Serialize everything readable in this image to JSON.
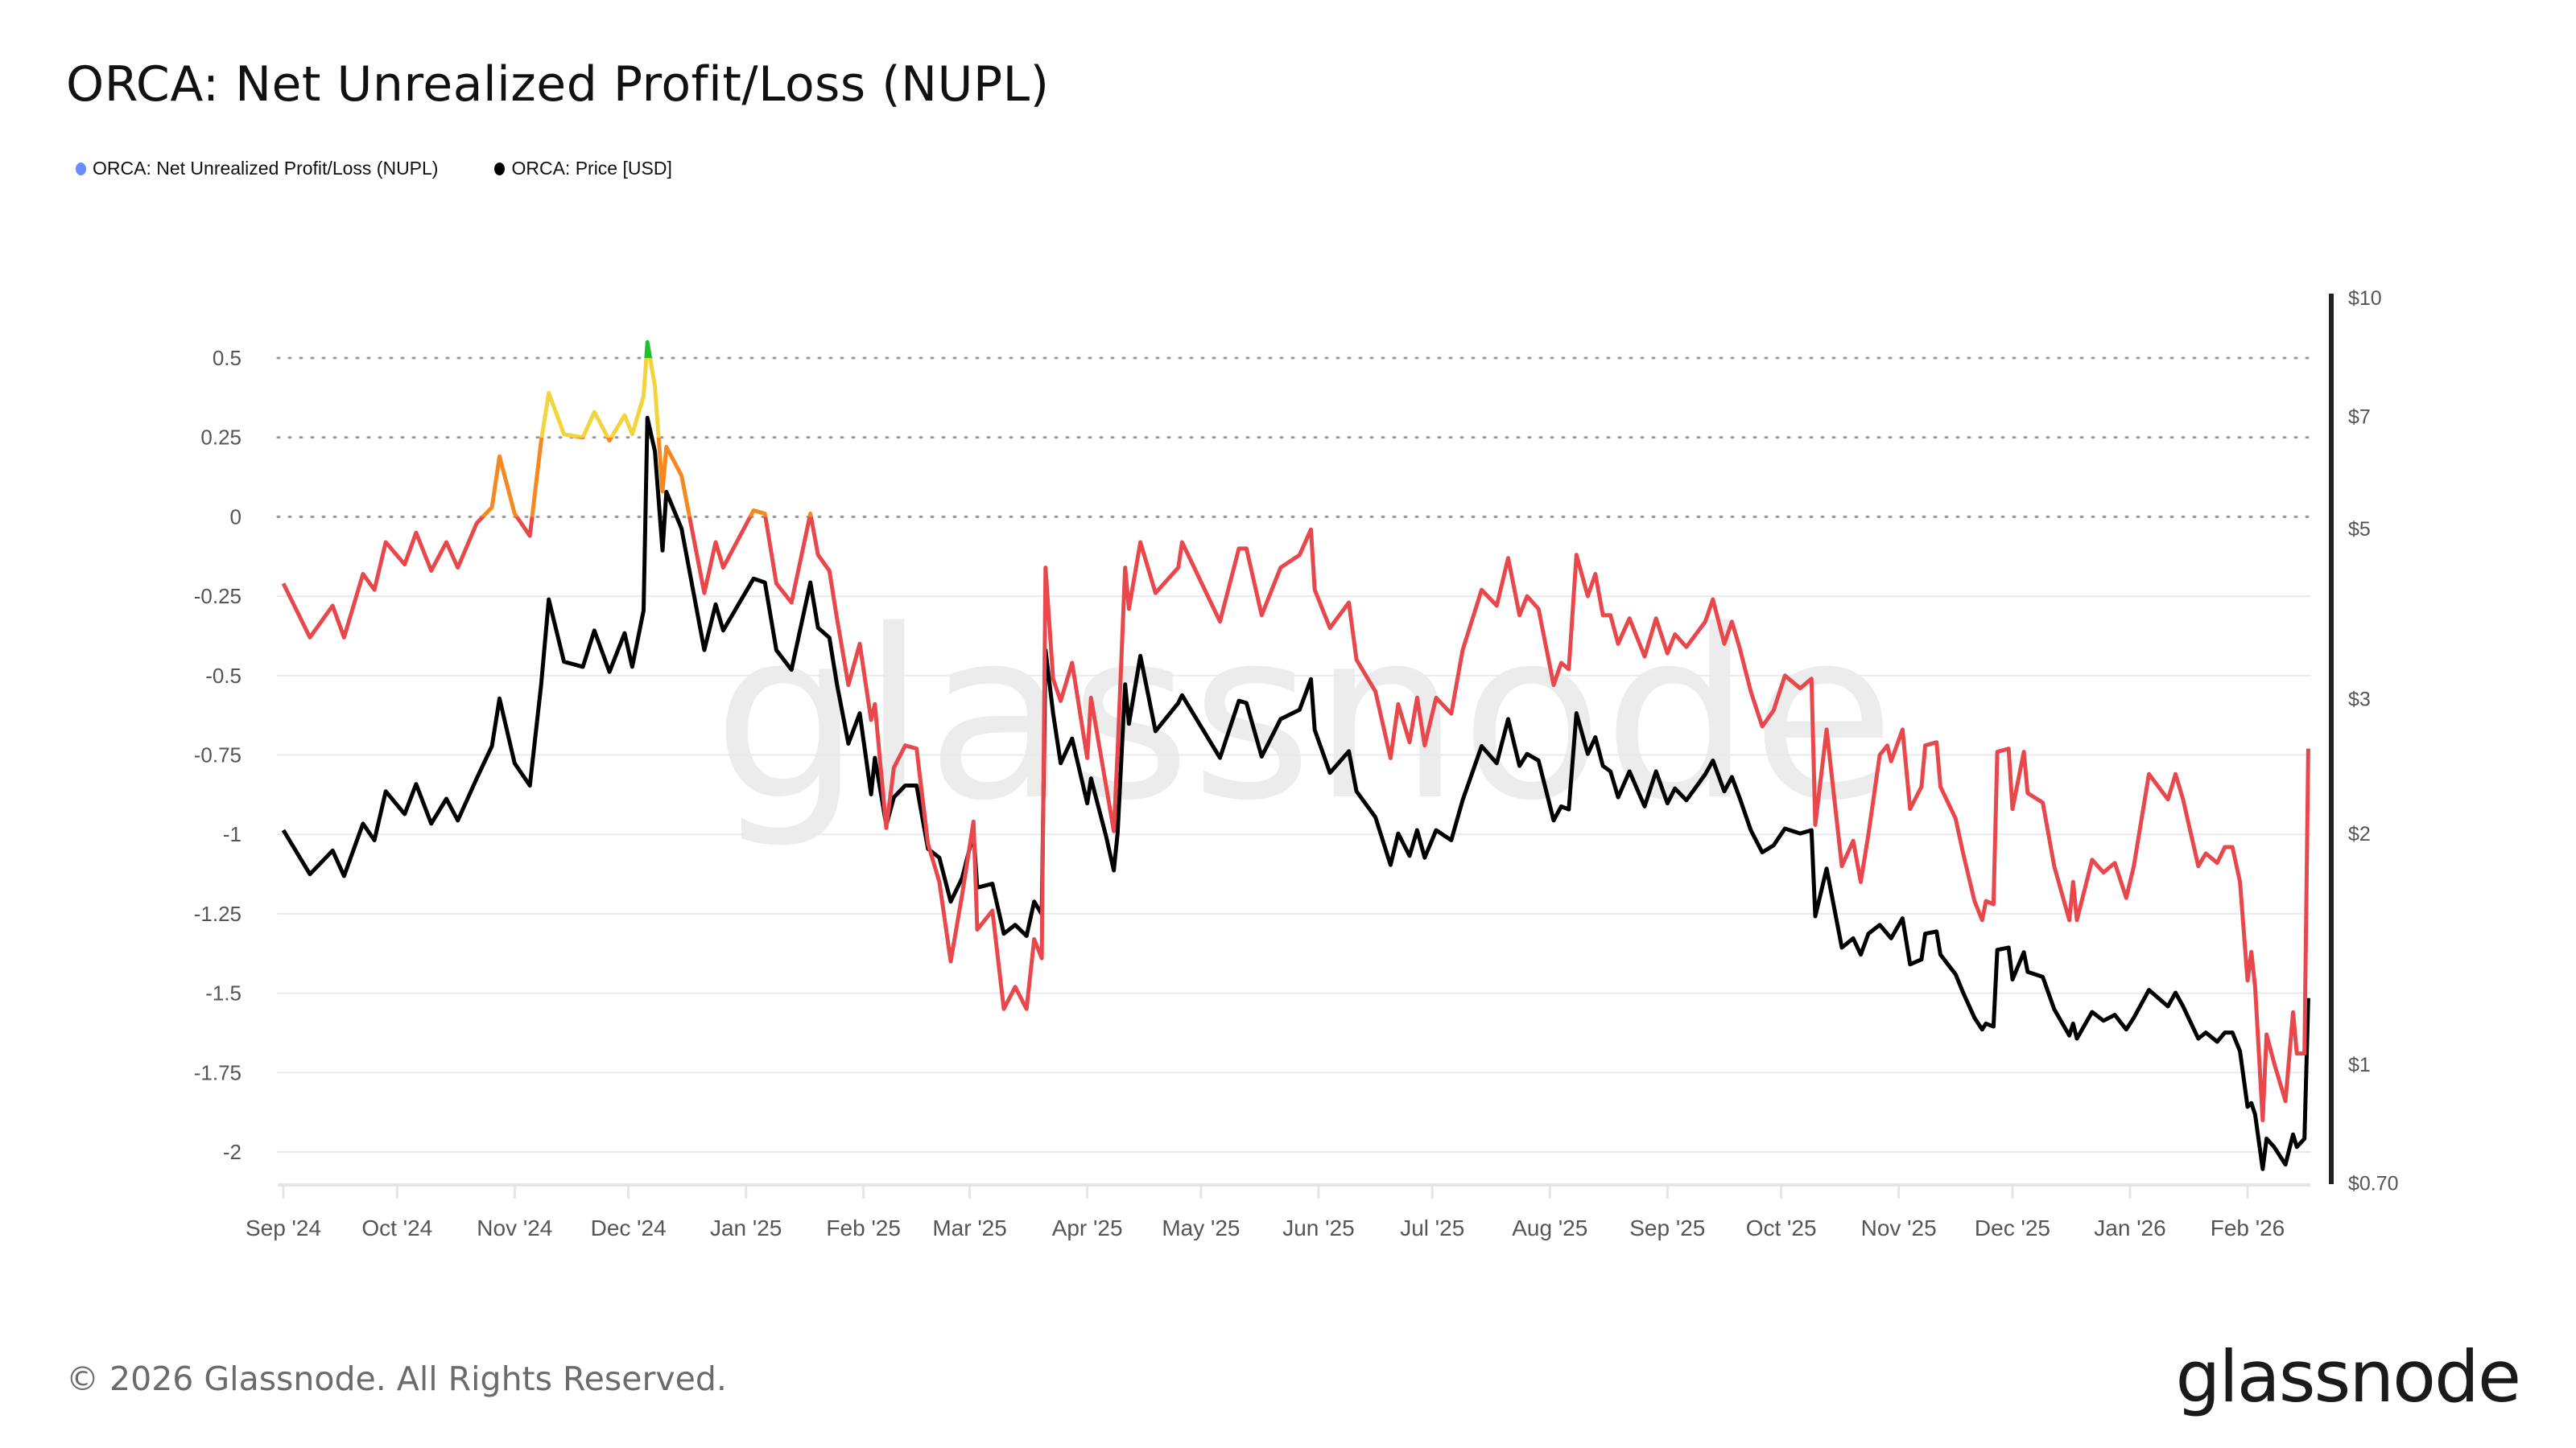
{
  "title": "ORCA: Net Unrealized Profit/Loss (NUPL)",
  "legend": [
    {
      "label": "ORCA: Net Unrealized Profit/Loss (NUPL)",
      "color": "#6b8cff"
    },
    {
      "label": "ORCA: Price [USD]",
      "color": "#000000"
    }
  ],
  "watermark": "glassnode",
  "footer": "© 2026 Glassnode. All Rights Reserved.",
  "logo": "glassnode",
  "chart_data": {
    "type": "line",
    "title": "ORCA: Net Unrealized Profit/Loss (NUPL)",
    "legend_position": "top-left",
    "grid": true,
    "y_left": {
      "ticks": [
        "0.5",
        "0.25",
        "0",
        "-0.25",
        "-0.5",
        "-0.75",
        "-1",
        "-1.25",
        "-1.5",
        "-1.75",
        "-2"
      ],
      "tick_values": [
        0.5,
        0.25,
        0,
        -0.25,
        -0.5,
        -0.75,
        -1,
        -1.25,
        -1.5,
        -1.75,
        -2
      ],
      "range": [
        -2,
        0.5
      ],
      "dotted_levels": [
        0.5,
        0.25,
        0
      ]
    },
    "y_right": {
      "scale": "log",
      "ticks": [
        "$10",
        "$7",
        "$5",
        "$3",
        "$2",
        "$1",
        "$0.70"
      ],
      "tick_values": [
        10,
        7,
        5,
        3,
        2,
        1,
        0.7
      ],
      "range": [
        0.7,
        10
      ]
    },
    "x_axis": {
      "ticks": [
        "Sep '24",
        "Oct '24",
        "Nov '24",
        "Dec '24",
        "Jan '25",
        "Feb '25",
        "Mar '25",
        "Apr '25",
        "May '25",
        "Jun '25",
        "Jul '25",
        "Aug '25",
        "Sep '25",
        "Oct '25",
        "Nov '25",
        "Dec '25",
        "Jan '26",
        "Feb '26"
      ],
      "tick_dates": [
        "2024-09-01",
        "2024-10-01",
        "2024-11-01",
        "2024-12-01",
        "2025-01-01",
        "2025-02-01",
        "2025-03-01",
        "2025-04-01",
        "2025-05-01",
        "2025-06-01",
        "2025-07-01",
        "2025-08-01",
        "2025-09-01",
        "2025-10-01",
        "2025-11-01",
        "2025-12-01",
        "2026-01-01",
        "2026-02-01"
      ]
    },
    "nupl_zone_colors": {
      "below_0": "#e8474c",
      "0_to_0.25": "#f5891f",
      "0.25_to_0.5": "#f3d43c",
      "above_0.5": "#22c02a"
    },
    "x": [
      "2024-09-01",
      "2024-09-08",
      "2024-09-14",
      "2024-09-17",
      "2024-09-22",
      "2024-09-25",
      "2024-09-28",
      "2024-10-03",
      "2024-10-06",
      "2024-10-10",
      "2024-10-14",
      "2024-10-17",
      "2024-10-22",
      "2024-10-26",
      "2024-10-28",
      "2024-11-01",
      "2024-11-05",
      "2024-11-08",
      "2024-11-10",
      "2024-11-14",
      "2024-11-19",
      "2024-11-22",
      "2024-11-26",
      "2024-11-30",
      "2024-12-02",
      "2024-12-05",
      "2024-12-06",
      "2024-12-08",
      "2024-12-10",
      "2024-12-11",
      "2024-12-15",
      "2024-12-21",
      "2024-12-24",
      "2024-12-26",
      "2025-01-03",
      "2025-01-06",
      "2025-01-09",
      "2025-01-13",
      "2025-01-18",
      "2025-01-20",
      "2025-01-23",
      "2025-01-25",
      "2025-01-28",
      "2025-01-31",
      "2025-02-03",
      "2025-02-04",
      "2025-02-07",
      "2025-02-09",
      "2025-02-12",
      "2025-02-15",
      "2025-02-18",
      "2025-02-21",
      "2025-02-24",
      "2025-02-27",
      "2025-03-02",
      "2025-03-03",
      "2025-03-07",
      "2025-03-10",
      "2025-03-13",
      "2025-03-16",
      "2025-03-18",
      "2025-03-20",
      "2025-03-21",
      "2025-03-23",
      "2025-03-25",
      "2025-03-28",
      "2025-04-01",
      "2025-04-02",
      "2025-04-06",
      "2025-04-08",
      "2025-04-09",
      "2025-04-11",
      "2025-04-12",
      "2025-04-15",
      "2025-04-19",
      "2025-04-25",
      "2025-04-26",
      "2025-05-06",
      "2025-05-11",
      "2025-05-13",
      "2025-05-17",
      "2025-05-22",
      "2025-05-27",
      "2025-05-30",
      "2025-05-31",
      "2025-06-04",
      "2025-06-09",
      "2025-06-11",
      "2025-06-16",
      "2025-06-20",
      "2025-06-22",
      "2025-06-25",
      "2025-06-27",
      "2025-06-29",
      "2025-07-02",
      "2025-07-06",
      "2025-07-09",
      "2025-07-14",
      "2025-07-18",
      "2025-07-21",
      "2025-07-24",
      "2025-07-26",
      "2025-07-29",
      "2025-08-02",
      "2025-08-04",
      "2025-08-06",
      "2025-08-08",
      "2025-08-11",
      "2025-08-13",
      "2025-08-15",
      "2025-08-17",
      "2025-08-19",
      "2025-08-22",
      "2025-08-26",
      "2025-08-29",
      "2025-09-01",
      "2025-09-03",
      "2025-09-06",
      "2025-09-11",
      "2025-09-13",
      "2025-09-16",
      "2025-09-18",
      "2025-09-20",
      "2025-09-23",
      "2025-09-26",
      "2025-09-29",
      "2025-10-02",
      "2025-10-06",
      "2025-10-09",
      "2025-10-10",
      "2025-10-13",
      "2025-10-17",
      "2025-10-20",
      "2025-10-22",
      "2025-10-24",
      "2025-10-27",
      "2025-10-29",
      "2025-10-30",
      "2025-11-02",
      "2025-11-04",
      "2025-11-07",
      "2025-11-08",
      "2025-11-11",
      "2025-11-12",
      "2025-11-16",
      "2025-11-18",
      "2025-11-21",
      "2025-11-23",
      "2025-11-24",
      "2025-11-26",
      "2025-11-27",
      "2025-11-30",
      "2025-12-01",
      "2025-12-04",
      "2025-12-05",
      "2025-12-09",
      "2025-12-12",
      "2025-12-16",
      "2025-12-17",
      "2025-12-18",
      "2025-12-22",
      "2025-12-25",
      "2025-12-28",
      "2025-12-31",
      "2026-01-02",
      "2026-01-06",
      "2026-01-11",
      "2026-01-13",
      "2026-01-15",
      "2026-01-19",
      "2026-01-21",
      "2026-01-24",
      "2026-01-26",
      "2026-01-28",
      "2026-01-30",
      "2026-02-01",
      "2026-02-02",
      "2026-02-03",
      "2026-02-05",
      "2026-02-06",
      "2026-02-08",
      "2026-02-11",
      "2026-02-13",
      "2026-02-14",
      "2026-02-16",
      "2026-02-17"
    ],
    "series": [
      {
        "name": "ORCA: Net Unrealized Profit/Loss (NUPL)",
        "axis": "left",
        "values": [
          -0.21,
          -0.38,
          -0.28,
          -0.38,
          -0.18,
          -0.23,
          -0.08,
          -0.15,
          -0.05,
          -0.17,
          -0.08,
          -0.16,
          -0.02,
          0.03,
          0.19,
          0.01,
          -0.06,
          0.24,
          0.39,
          0.26,
          0.25,
          0.33,
          0.24,
          0.32,
          0.26,
          0.38,
          0.55,
          0.41,
          0.08,
          0.22,
          0.13,
          -0.24,
          -0.08,
          -0.16,
          0.02,
          0.01,
          -0.21,
          -0.27,
          0.01,
          -0.12,
          -0.17,
          -0.32,
          -0.53,
          -0.4,
          -0.64,
          -0.59,
          -0.98,
          -0.79,
          -0.72,
          -0.73,
          -1.03,
          -1.15,
          -1.4,
          -1.19,
          -0.96,
          -1.3,
          -1.24,
          -1.55,
          -1.48,
          -1.55,
          -1.33,
          -1.39,
          -0.16,
          -0.51,
          -0.58,
          -0.46,
          -0.76,
          -0.57,
          -0.85,
          -0.99,
          -0.74,
          -0.16,
          -0.29,
          -0.08,
          -0.24,
          -0.16,
          -0.08,
          -0.33,
          -0.1,
          -0.1,
          -0.31,
          -0.16,
          -0.12,
          -0.04,
          -0.23,
          -0.35,
          -0.27,
          -0.45,
          -0.55,
          -0.76,
          -0.59,
          -0.71,
          -0.57,
          -0.72,
          -0.57,
          -0.62,
          -0.42,
          -0.23,
          -0.28,
          -0.13,
          -0.31,
          -0.25,
          -0.29,
          -0.53,
          -0.46,
          -0.48,
          -0.12,
          -0.25,
          -0.18,
          -0.31,
          -0.31,
          -0.4,
          -0.32,
          -0.44,
          -0.32,
          -0.43,
          -0.37,
          -0.41,
          -0.33,
          -0.26,
          -0.4,
          -0.33,
          -0.41,
          -0.55,
          -0.66,
          -0.61,
          -0.5,
          -0.54,
          -0.51,
          -0.97,
          -0.67,
          -1.1,
          -1.02,
          -1.15,
          -1.0,
          -0.75,
          -0.72,
          -0.77,
          -0.67,
          -0.92,
          -0.85,
          -0.72,
          -0.71,
          -0.85,
          -0.95,
          -1.06,
          -1.21,
          -1.27,
          -1.21,
          -1.22,
          -0.74,
          -0.73,
          -0.92,
          -0.74,
          -0.87,
          -0.9,
          -1.1,
          -1.27,
          -1.15,
          -1.27,
          -1.08,
          -1.12,
          -1.09,
          -1.2,
          -1.1,
          -0.81,
          -0.89,
          -0.81,
          -0.89,
          -1.1,
          -1.06,
          -1.09,
          -1.04,
          -1.04,
          -1.15,
          -1.46,
          -1.37,
          -1.48,
          -1.9,
          -1.63,
          -1.72,
          -1.84,
          -1.56,
          -1.69,
          -1.69,
          -0.73
        ]
      },
      {
        "name": "ORCA: Price [USD]",
        "axis": "right",
        "values": [
          2.02,
          1.77,
          1.9,
          1.76,
          2.06,
          1.96,
          2.27,
          2.12,
          2.32,
          2.06,
          2.22,
          2.08,
          2.36,
          2.6,
          3.0,
          2.47,
          2.31,
          3.13,
          4.04,
          3.35,
          3.3,
          3.68,
          3.25,
          3.65,
          3.3,
          3.91,
          6.97,
          6.3,
          4.68,
          5.58,
          5.0,
          3.47,
          3.98,
          3.68,
          4.3,
          4.25,
          3.47,
          3.27,
          4.25,
          3.71,
          3.6,
          3.13,
          2.62,
          2.87,
          2.25,
          2.51,
          2.05,
          2.23,
          2.31,
          2.31,
          1.91,
          1.86,
          1.63,
          1.75,
          2.0,
          1.7,
          1.72,
          1.48,
          1.52,
          1.47,
          1.63,
          1.57,
          3.47,
          2.87,
          2.47,
          2.66,
          2.19,
          2.36,
          1.98,
          1.79,
          2.0,
          3.13,
          2.78,
          3.41,
          2.72,
          2.96,
          3.03,
          2.51,
          2.98,
          2.96,
          2.52,
          2.82,
          2.9,
          3.18,
          2.73,
          2.4,
          2.56,
          2.27,
          2.1,
          1.82,
          2.0,
          1.87,
          2.02,
          1.86,
          2.02,
          1.96,
          2.21,
          2.6,
          2.47,
          2.82,
          2.45,
          2.54,
          2.49,
          2.08,
          2.17,
          2.15,
          2.87,
          2.54,
          2.67,
          2.45,
          2.41,
          2.23,
          2.41,
          2.17,
          2.41,
          2.19,
          2.29,
          2.21,
          2.39,
          2.49,
          2.27,
          2.37,
          2.23,
          2.02,
          1.89,
          1.93,
          2.03,
          2.0,
          2.02,
          1.56,
          1.8,
          1.42,
          1.46,
          1.39,
          1.48,
          1.52,
          1.48,
          1.46,
          1.55,
          1.35,
          1.37,
          1.48,
          1.49,
          1.39,
          1.31,
          1.24,
          1.15,
          1.11,
          1.13,
          1.12,
          1.41,
          1.42,
          1.29,
          1.4,
          1.32,
          1.3,
          1.18,
          1.09,
          1.13,
          1.08,
          1.17,
          1.14,
          1.16,
          1.11,
          1.15,
          1.25,
          1.19,
          1.24,
          1.19,
          1.08,
          1.1,
          1.07,
          1.1,
          1.1,
          1.04,
          0.88,
          0.89,
          0.86,
          0.73,
          0.8,
          0.78,
          0.74,
          0.81,
          0.78,
          0.8,
          1.22
        ]
      }
    ]
  }
}
